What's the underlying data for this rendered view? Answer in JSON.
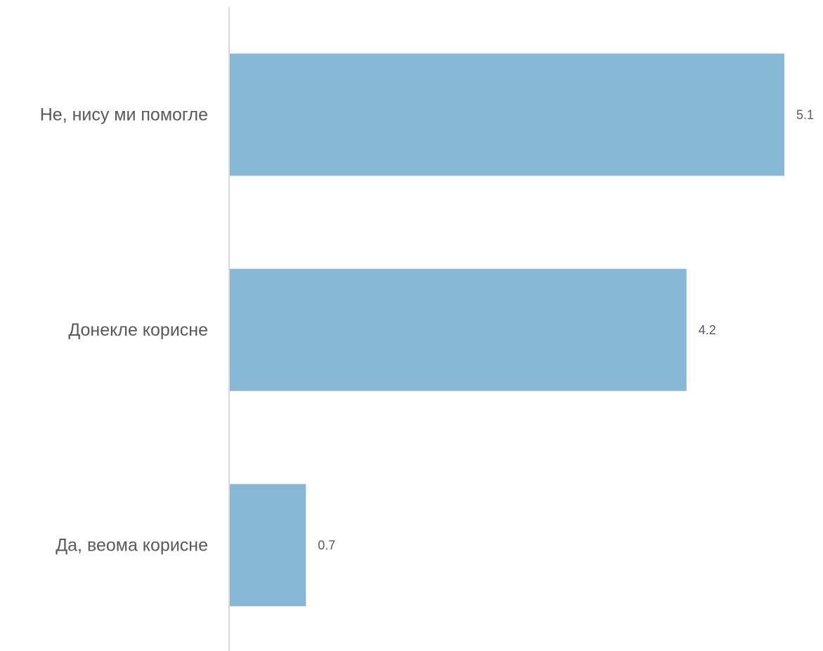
{
  "chart_data": {
    "type": "bar",
    "orientation": "horizontal",
    "title": "",
    "xlabel": "",
    "ylabel": "",
    "categories": [
      "Не, нису ми помогле",
      "Донекле корисне",
      "Да, веома корисне"
    ],
    "values": [
      5.1,
      4.2,
      0.7
    ],
    "value_labels": [
      "5.1",
      "4.2",
      "0.7"
    ],
    "xlim": [
      0,
      5.1
    ],
    "grid": false,
    "legend": "none",
    "bar_color": "#87B9D6",
    "axis_color": "#D9D9D9",
    "text_color": "#595959"
  }
}
